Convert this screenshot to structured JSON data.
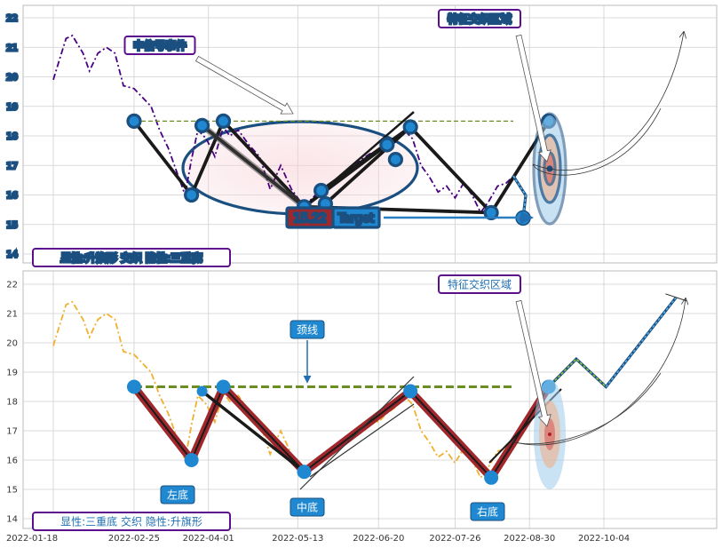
{
  "chart_data": [
    {
      "type": "line",
      "panel": "top",
      "ylim": [
        13.7,
        22.4
      ],
      "yticks": [
        14,
        15,
        16,
        17,
        18,
        19,
        20,
        21,
        22
      ],
      "grid": true,
      "price_series": {
        "color": "#4b0082",
        "style": "dash-dot",
        "points": [
          [
            "2022-01-18",
            19.9
          ],
          [
            "2022-01-21",
            20.6
          ],
          [
            "2022-01-24",
            21.3
          ],
          [
            "2022-01-27",
            21.4
          ],
          [
            "2022-02-01",
            20.8
          ],
          [
            "2022-02-04",
            20.2
          ],
          [
            "2022-02-08",
            20.8
          ],
          [
            "2022-02-12",
            21.0
          ],
          [
            "2022-02-16",
            20.8
          ],
          [
            "2022-02-20",
            19.7
          ],
          [
            "2022-02-25",
            19.6
          ],
          [
            "2022-03-01",
            19.3
          ],
          [
            "2022-03-05",
            19.0
          ],
          [
            "2022-03-09",
            18.2
          ],
          [
            "2022-03-13",
            17.6
          ],
          [
            "2022-03-17",
            16.8
          ],
          [
            "2022-03-21",
            16.0
          ],
          [
            "2022-03-24",
            17.2
          ],
          [
            "2022-03-27",
            18.2
          ],
          [
            "2022-03-31",
            17.9
          ],
          [
            "2022-04-04",
            17.3
          ],
          [
            "2022-04-08",
            18.3
          ],
          [
            "2022-04-11",
            18.0
          ],
          [
            "2022-04-15",
            18.2
          ],
          [
            "2022-04-20",
            17.7
          ],
          [
            "2022-04-25",
            17.3
          ],
          [
            "2022-04-30",
            16.2
          ],
          [
            "2022-05-05",
            17.0
          ],
          [
            "2022-05-10",
            16.2
          ],
          [
            "2022-05-16",
            15.6
          ],
          [
            "2022-05-20",
            15.9
          ],
          [
            "2022-05-24",
            16.2
          ],
          [
            "2022-05-28",
            16.3
          ],
          [
            "2022-06-02",
            16.6
          ],
          [
            "2022-06-07",
            16.9
          ],
          [
            "2022-06-12",
            17.2
          ],
          [
            "2022-06-16",
            17.4
          ],
          [
            "2022-06-20",
            17.3
          ],
          [
            "2022-06-24",
            17.6
          ],
          [
            "2022-06-28",
            17.8
          ],
          [
            "2022-07-02",
            18.2
          ],
          [
            "2022-07-06",
            17.9
          ],
          [
            "2022-07-10",
            17.0
          ],
          [
            "2022-07-14",
            16.6
          ],
          [
            "2022-07-18",
            16.1
          ],
          [
            "2022-07-22",
            16.3
          ],
          [
            "2022-07-26",
            15.9
          ],
          [
            "2022-07-30",
            16.4
          ],
          [
            "2022-08-03",
            16.0
          ],
          [
            "2022-08-07",
            15.4
          ],
          [
            "2022-08-11",
            15.8
          ],
          [
            "2022-08-15",
            16.3
          ],
          [
            "2022-08-19",
            16.4
          ],
          [
            "2022-08-22",
            16.6
          ]
        ]
      },
      "pattern_points": [
        [
          "2022-02-25",
          18.5
        ],
        [
          "2022-03-24",
          16.0
        ],
        [
          "2022-03-29",
          18.35
        ],
        [
          "2022-04-08",
          18.5
        ],
        [
          "2022-05-16",
          15.6
        ],
        [
          "2022-05-24",
          16.15
        ],
        [
          "2022-05-26",
          15.7
        ],
        [
          "2022-06-24",
          17.7
        ],
        [
          "2022-06-28",
          17.2
        ],
        [
          "2022-07-05",
          18.3
        ],
        [
          "2022-08-12",
          15.4
        ],
        [
          "2022-09-08",
          18.5
        ]
      ],
      "resistance_level": 18.5,
      "target_value": "15.22",
      "target_label": "Target",
      "target_point": [
        "2022-08-27",
        15.22
      ],
      "callout_a": "中信号事件",
      "callout_b": "特征交织区域",
      "footer_label": "显性:升旗形 交织 隐性:三重底"
    },
    {
      "type": "line",
      "panel": "bottom",
      "ylim": [
        13.7,
        22.4
      ],
      "yticks": [
        14,
        15,
        16,
        17,
        18,
        19,
        20,
        21,
        22
      ],
      "grid": true,
      "price_series": {
        "color": "#f0b030",
        "style": "dash-dot",
        "points": [
          [
            "2022-01-18",
            19.9
          ],
          [
            "2022-01-21",
            20.6
          ],
          [
            "2022-01-24",
            21.3
          ],
          [
            "2022-01-27",
            21.4
          ],
          [
            "2022-02-01",
            20.8
          ],
          [
            "2022-02-04",
            20.2
          ],
          [
            "2022-02-08",
            20.8
          ],
          [
            "2022-02-12",
            21.0
          ],
          [
            "2022-02-16",
            20.8
          ],
          [
            "2022-02-20",
            19.7
          ],
          [
            "2022-02-25",
            19.6
          ],
          [
            "2022-03-01",
            19.3
          ],
          [
            "2022-03-05",
            19.0
          ],
          [
            "2022-03-09",
            18.2
          ],
          [
            "2022-03-13",
            17.6
          ],
          [
            "2022-03-17",
            16.8
          ],
          [
            "2022-03-21",
            16.0
          ],
          [
            "2022-03-24",
            17.2
          ],
          [
            "2022-03-27",
            18.2
          ],
          [
            "2022-03-31",
            17.9
          ],
          [
            "2022-04-04",
            17.3
          ],
          [
            "2022-04-08",
            18.3
          ],
          [
            "2022-04-11",
            18.0
          ],
          [
            "2022-04-15",
            18.2
          ],
          [
            "2022-04-20",
            17.7
          ],
          [
            "2022-04-25",
            17.3
          ],
          [
            "2022-04-30",
            16.2
          ],
          [
            "2022-05-05",
            17.0
          ],
          [
            "2022-05-10",
            16.2
          ],
          [
            "2022-05-16",
            15.6
          ],
          [
            "2022-05-20",
            15.9
          ],
          [
            "2022-05-24",
            16.2
          ],
          [
            "2022-05-28",
            16.3
          ],
          [
            "2022-06-02",
            16.6
          ],
          [
            "2022-06-07",
            16.9
          ],
          [
            "2022-06-12",
            17.2
          ],
          [
            "2022-06-16",
            17.4
          ],
          [
            "2022-06-20",
            17.3
          ],
          [
            "2022-06-24",
            17.6
          ],
          [
            "2022-06-28",
            17.8
          ],
          [
            "2022-07-02",
            18.2
          ],
          [
            "2022-07-06",
            17.9
          ],
          [
            "2022-07-10",
            17.0
          ],
          [
            "2022-07-14",
            16.6
          ],
          [
            "2022-07-18",
            16.1
          ],
          [
            "2022-07-22",
            16.3
          ],
          [
            "2022-07-26",
            15.9
          ],
          [
            "2022-07-30",
            16.4
          ],
          [
            "2022-08-03",
            16.0
          ],
          [
            "2022-08-07",
            15.4
          ],
          [
            "2022-08-11",
            15.8
          ],
          [
            "2022-08-15",
            16.3
          ],
          [
            "2022-08-19",
            16.4
          ],
          [
            "2022-08-22",
            16.6
          ]
        ]
      },
      "pattern_points": [
        [
          "2022-02-25",
          18.5
        ],
        [
          "2022-03-24",
          16.0
        ],
        [
          "2022-03-29",
          18.35
        ],
        [
          "2022-04-08",
          18.5
        ],
        [
          "2022-05-16",
          15.6
        ],
        [
          "2022-07-05",
          18.35
        ],
        [
          "2022-08-12",
          15.4
        ],
        [
          "2022-09-08",
          18.5
        ]
      ],
      "neckline": 18.5,
      "projection_points": [
        [
          "2022-09-08",
          18.5
        ],
        [
          "2022-09-21",
          19.45
        ],
        [
          "2022-10-05",
          18.5
        ],
        [
          "2022-11-07",
          21.55
        ]
      ],
      "callout_neckline": "颈线",
      "callout_region": "特征交织区域",
      "bottom_labels": [
        "左底",
        "中底",
        "右底"
      ],
      "footer_label": "显性:三重底 交织 隐性:升旗形"
    }
  ],
  "x_axis": {
    "ticks": [
      "2022-01-18",
      "2022-02-25",
      "2022-04-01",
      "2022-05-13",
      "2022-06-20",
      "2022-07-26",
      "2022-08-30",
      "2022-10-04"
    ]
  },
  "colors": {
    "marker": "#1f88d0",
    "pattern_line": "#1a1a1a",
    "red_band": "#a0282d",
    "dash_green": "#6b8e23",
    "label_border": "#5b0f8c",
    "label_text_blue": "#1f6fb2",
    "label_text_red": "#a0282d",
    "grid": "#cfcfcf"
  }
}
